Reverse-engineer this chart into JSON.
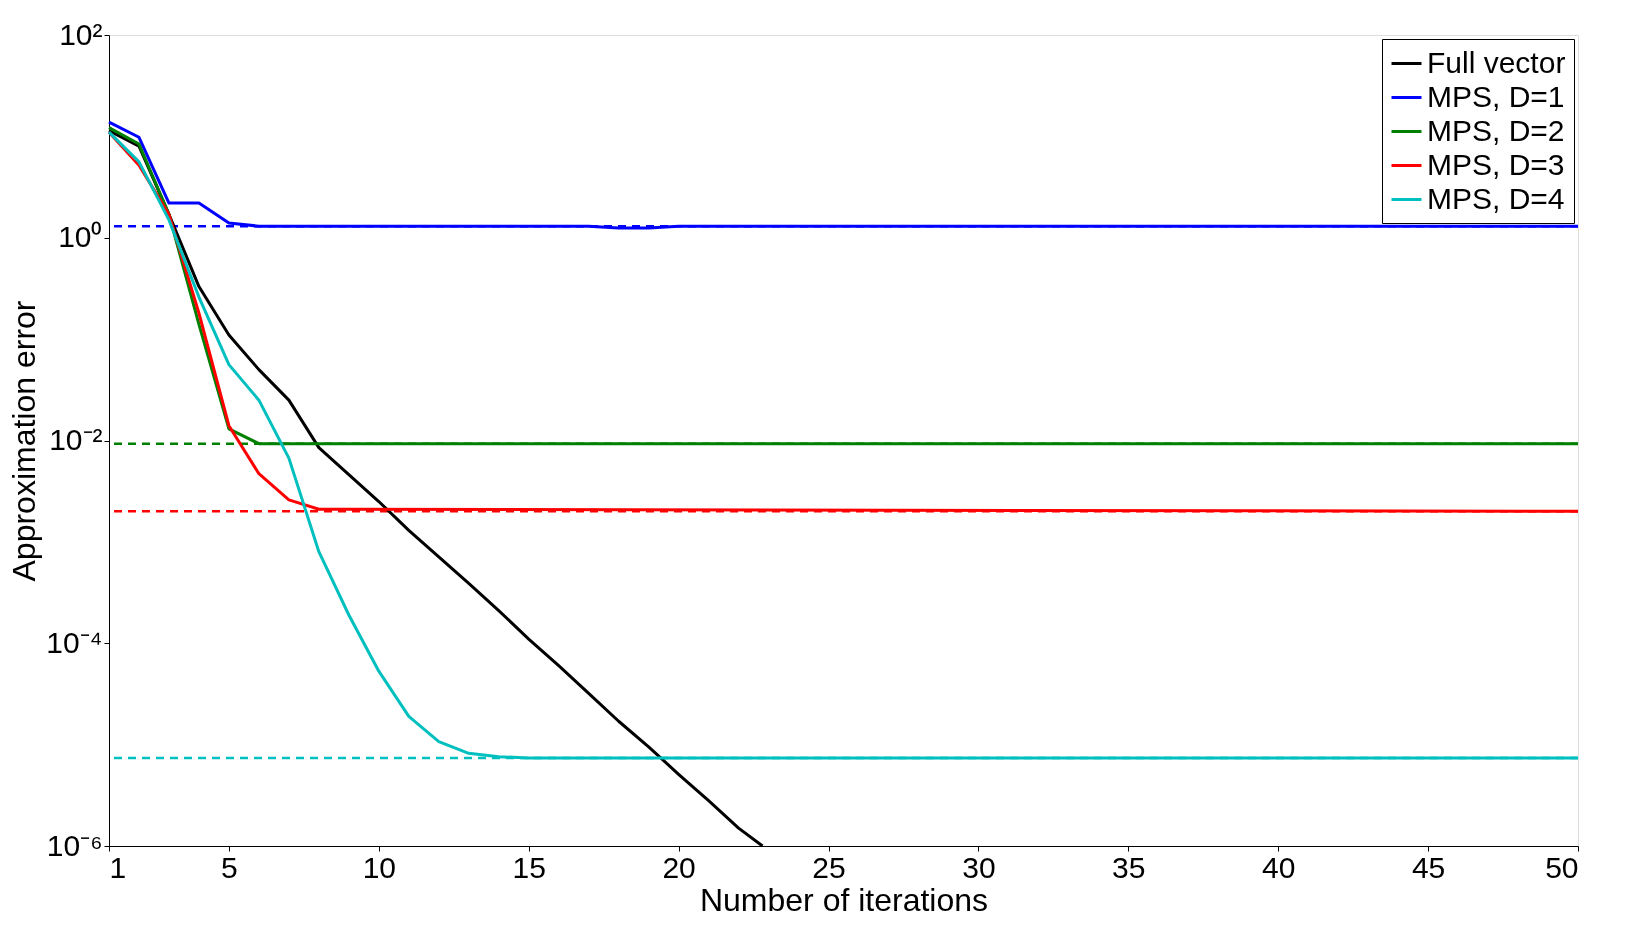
{
  "chart_data": {
    "type": "line",
    "xlabel": "Number of iterations",
    "ylabel": "Approximation error",
    "log": "y",
    "grid": false,
    "legend": "top right",
    "line_style": "solid",
    "marker": "none",
    "xlim": [
      1,
      50
    ],
    "xticks": [
      1,
      5,
      10,
      15,
      20,
      25,
      30,
      35,
      40,
      45,
      50
    ],
    "ylim": [
      1e-06,
      100
    ],
    "yticks": [
      {
        "value": 1e-06,
        "label": "10⁻⁶"
      },
      {
        "value": 0.0001,
        "label": "10⁻⁴"
      },
      {
        "value": 0.01,
        "label": "10⁻²"
      },
      {
        "value": 1,
        "label": "10⁰"
      },
      {
        "value": 100,
        "label": "10²"
      }
    ],
    "series": [
      {
        "name": "Full vector",
        "color": "#000000",
        "x": [
          1,
          2,
          3,
          4,
          5,
          6,
          7,
          8,
          9,
          10,
          11,
          12,
          13,
          14,
          15,
          16,
          17,
          18,
          19,
          20,
          21,
          22,
          22.8
        ],
        "values": [
          11.4,
          8,
          1.7,
          0.33,
          0.11,
          0.05,
          0.025,
          0.0085,
          0.0046,
          0.0025,
          0.0013,
          0.00071,
          0.00039,
          0.00021,
          0.00011,
          6e-05,
          3.2e-05,
          1.7e-05,
          9.5e-06,
          5.1e-06,
          2.8e-06,
          1.5e-06,
          1e-06
        ]
      },
      {
        "name": "MPS, D=1",
        "color": "#0000ff",
        "x": [
          1,
          2,
          3,
          4,
          5,
          6,
          17,
          18,
          19,
          20,
          50
        ],
        "values": [
          13.8,
          9.8,
          2.2,
          2.2,
          1.4,
          1.3,
          1.3,
          1.25,
          1.25,
          1.3,
          1.3
        ]
      },
      {
        "name": "MPS, D=2",
        "color": "#008000",
        "x": [
          1,
          2,
          3,
          4,
          5,
          6,
          50
        ],
        "values": [
          12.2,
          8.4,
          1.7,
          0.14,
          0.013,
          0.0093,
          0.0093
        ]
      },
      {
        "name": "MPS, D=3",
        "color": "#ff0000",
        "x": [
          1,
          2,
          3,
          4,
          5,
          6,
          7,
          8,
          9,
          50
        ],
        "values": [
          11,
          5.2,
          1.7,
          0.18,
          0.014,
          0.0047,
          0.0026,
          0.0021,
          0.0021,
          0.002
        ]
      },
      {
        "name": "MPS, D=4",
        "color": "#00bfbf",
        "x": [
          1,
          2,
          3,
          4,
          5,
          6,
          7,
          8,
          9,
          10,
          11,
          12,
          13,
          14,
          15,
          50
        ],
        "values": [
          11,
          5.6,
          1.5,
          0.26,
          0.056,
          0.025,
          0.0067,
          0.0008,
          0.00019,
          5.3e-05,
          1.9e-05,
          1.07e-05,
          8.2e-06,
          7.6e-06,
          7.4e-06,
          7.4e-06
        ]
      }
    ],
    "ref_lines": [
      {
        "axis": "y",
        "value": 1.3,
        "color": "#0000ff",
        "line_style": "dashed"
      },
      {
        "axis": "y",
        "value": 0.0093,
        "color": "#008000",
        "line_style": "dashed"
      },
      {
        "axis": "y",
        "value": 0.002,
        "color": "#ff0000",
        "line_style": "dashed"
      },
      {
        "axis": "y",
        "value": 7.4e-06,
        "color": "#00bfbf",
        "line_style": "dashed"
      }
    ]
  }
}
